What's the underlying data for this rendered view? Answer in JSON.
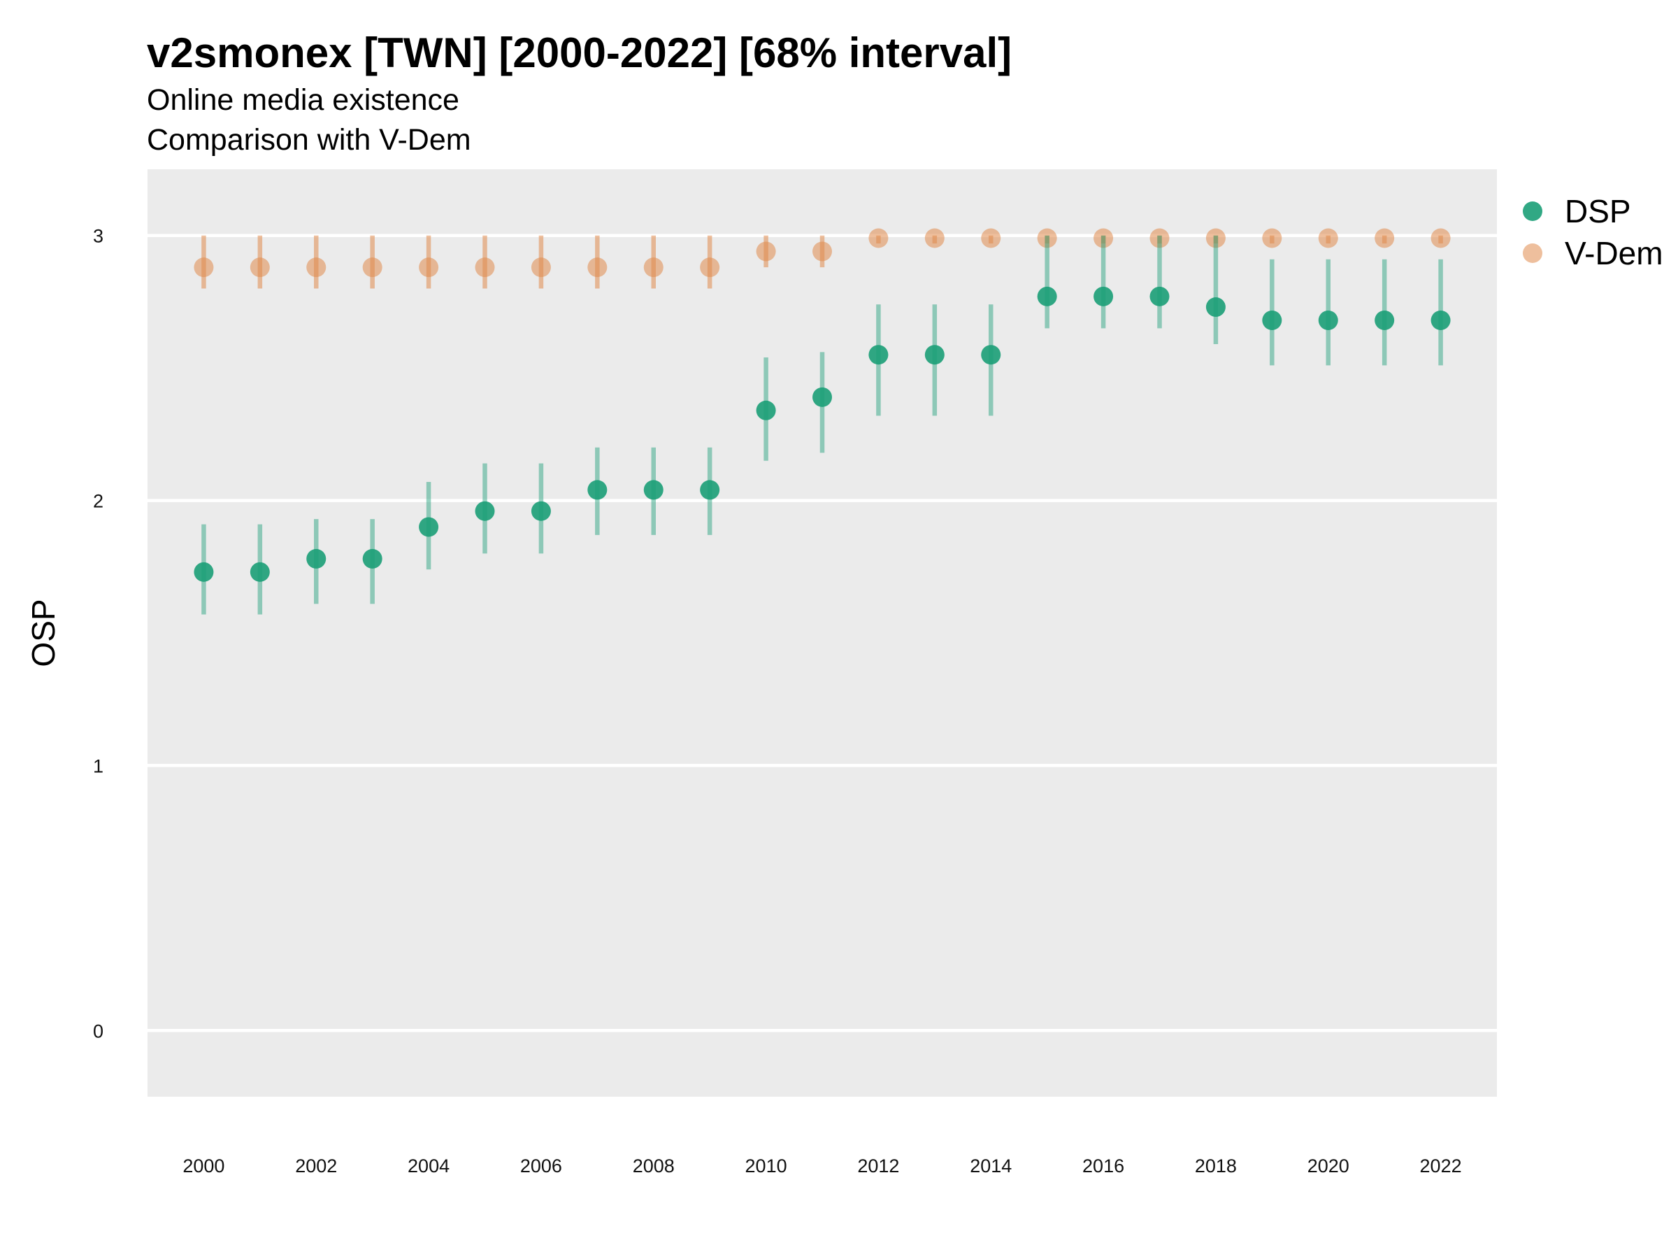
{
  "chart_data": {
    "type": "scatter",
    "title": "v2smonex [TWN] [2000-2022] [68% interval]",
    "subtitle_lines": [
      "Online media existence",
      "Comparison with V-Dem"
    ],
    "xlabel": "",
    "ylabel": "OSP",
    "x_ticks": [
      "2000",
      "2002",
      "2004",
      "2006",
      "2008",
      "2010",
      "2012",
      "2014",
      "2016",
      "2018",
      "2020",
      "2022"
    ],
    "y_ticks": [
      "0",
      "1",
      "2",
      "3"
    ],
    "xlim": [
      1999,
      2023
    ],
    "ylim": [
      -0.25,
      3.25
    ],
    "grid": true,
    "legend_position": "right",
    "x": [
      2000,
      2001,
      2002,
      2003,
      2004,
      2005,
      2006,
      2007,
      2008,
      2009,
      2010,
      2011,
      2012,
      2013,
      2014,
      2015,
      2016,
      2017,
      2018,
      2019,
      2020,
      2021,
      2022
    ],
    "series": [
      {
        "name": "DSP",
        "color": "#1b9e77",
        "values": [
          1.73,
          1.73,
          1.78,
          1.78,
          1.9,
          1.96,
          1.96,
          2.04,
          2.04,
          2.04,
          2.34,
          2.39,
          2.55,
          2.55,
          2.55,
          2.77,
          2.77,
          2.77,
          2.73,
          2.68,
          2.68,
          2.68,
          2.68
        ],
        "lower": [
          1.57,
          1.57,
          1.61,
          1.61,
          1.74,
          1.8,
          1.8,
          1.87,
          1.87,
          1.87,
          2.15,
          2.18,
          2.32,
          2.32,
          2.32,
          2.65,
          2.65,
          2.65,
          2.59,
          2.51,
          2.51,
          2.51,
          2.51
        ],
        "upper": [
          1.91,
          1.91,
          1.93,
          1.93,
          2.07,
          2.14,
          2.14,
          2.2,
          2.2,
          2.2,
          2.54,
          2.56,
          2.74,
          2.74,
          2.74,
          3.0,
          3.0,
          3.0,
          3.0,
          2.91,
          2.91,
          2.91,
          2.91
        ]
      },
      {
        "name": "V-Dem",
        "color": "#e08a4d",
        "values": [
          2.88,
          2.88,
          2.88,
          2.88,
          2.88,
          2.88,
          2.88,
          2.88,
          2.88,
          2.88,
          2.94,
          2.94,
          2.99,
          2.99,
          2.99,
          2.99,
          2.99,
          2.99,
          2.99,
          2.99,
          2.99,
          2.99,
          2.99
        ],
        "lower": [
          2.8,
          2.8,
          2.8,
          2.8,
          2.8,
          2.8,
          2.8,
          2.8,
          2.8,
          2.8,
          2.88,
          2.88,
          2.97,
          2.97,
          2.97,
          2.97,
          2.97,
          2.97,
          2.97,
          2.97,
          2.97,
          2.97,
          2.97
        ],
        "upper": [
          3.0,
          3.0,
          3.0,
          3.0,
          3.0,
          3.0,
          3.0,
          3.0,
          3.0,
          3.0,
          3.0,
          3.0,
          3.0,
          3.0,
          3.0,
          3.0,
          3.0,
          3.0,
          3.0,
          3.0,
          3.0,
          3.0,
          3.0
        ]
      }
    ]
  }
}
